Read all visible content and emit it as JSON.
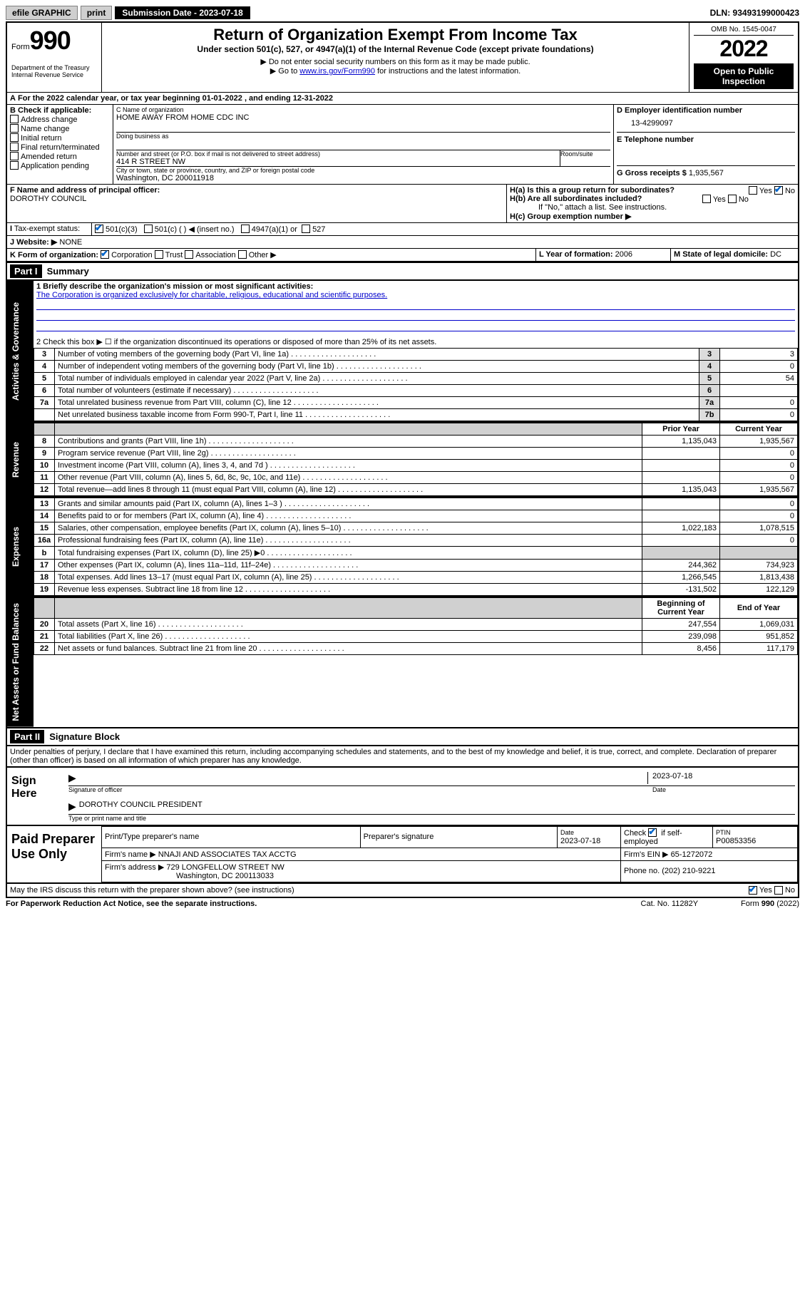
{
  "topbar": {
    "efile": "efile GRAPHIC",
    "print": "print",
    "subdate_label": "Submission Date - 2023-07-18",
    "dln": "DLN: 93493199000423"
  },
  "header": {
    "form_prefix": "Form",
    "form_no": "990",
    "title": "Return of Organization Exempt From Income Tax",
    "subtitle": "Under section 501(c), 527, or 4947(a)(1) of the Internal Revenue Code (except private foundations)",
    "note1": "▶ Do not enter social security numbers on this form as it may be made public.",
    "note2_a": "▶ Go to ",
    "note2_link": "www.irs.gov/Form990",
    "note2_b": " for instructions and the latest information.",
    "dept": "Department of the Treasury\nInternal Revenue Service",
    "omb": "OMB No. 1545-0047",
    "year": "2022",
    "inspect": "Open to Public Inspection"
  },
  "lineA": "For the 2022 calendar year, or tax year beginning 01-01-2022  , and ending 12-31-2022",
  "boxB": {
    "label": "B Check if applicable:",
    "items": [
      "Address change",
      "Name change",
      "Initial return",
      "Final return/terminated",
      "Amended return",
      "Application pending"
    ]
  },
  "boxC": {
    "label_name": "C Name of organization",
    "name": "HOME AWAY FROM HOME CDC INC",
    "dba_label": "Doing business as",
    "addr_label": "Number and street (or P.O. box if mail is not delivered to street address)",
    "room_label": "Room/suite",
    "addr": "414 R STREET NW",
    "city_label": "City or town, state or province, country, and ZIP or foreign postal code",
    "city": "Washington, DC  200011918"
  },
  "boxD": {
    "label": "D Employer identification number",
    "value": "13-4299097"
  },
  "boxE": {
    "label": "E Telephone number"
  },
  "boxG": {
    "label": "G Gross receipts $",
    "value": "1,935,567"
  },
  "boxF": {
    "label": "F Name and address of principal officer:",
    "value": "DOROTHY COUNCIL"
  },
  "boxH": {
    "a": "H(a)  Is this a group return for subordinates?",
    "b": "H(b)  Are all subordinates included?",
    "b_note": "If \"No,\" attach a list. See instructions.",
    "c": "H(c)  Group exemption number ▶",
    "yes": "Yes",
    "no": "No"
  },
  "taxexempt": {
    "label": "Tax-exempt status:",
    "c3": "501(c)(3)",
    "cother": "501(c) (  ) ◀ (insert no.)",
    "c4947": "4947(a)(1) or",
    "c527": "527"
  },
  "website": {
    "label": "J  Website: ▶",
    "value": "NONE"
  },
  "boxK": {
    "label": "K Form of organization:",
    "corp": "Corporation",
    "trust": "Trust",
    "assoc": "Association",
    "other": "Other ▶"
  },
  "boxL": {
    "label": "L Year of formation:",
    "value": "2006"
  },
  "boxM": {
    "label": "M State of legal domicile:",
    "value": "DC"
  },
  "parts": {
    "p1": "Part I",
    "p1t": "Summary",
    "p2": "Part II",
    "p2t": "Signature Block"
  },
  "summary": {
    "line1_label": "1  Briefly describe the organization's mission or most significant activities:",
    "line1_text": "The Corporation is organized exclusively for charitable, religious, educational and scientific purposes.",
    "line2": "2  Check this box ▶ ☐  if the organization discontinued its operations or disposed of more than 25% of its net assets.",
    "rows_gov": [
      {
        "n": "3",
        "d": "Number of voting members of the governing body (Part VI, line 1a)",
        "b": "3",
        "v": "3"
      },
      {
        "n": "4",
        "d": "Number of independent voting members of the governing body (Part VI, line 1b)",
        "b": "4",
        "v": "0"
      },
      {
        "n": "5",
        "d": "Total number of individuals employed in calendar year 2022 (Part V, line 2a)",
        "b": "5",
        "v": "54"
      },
      {
        "n": "6",
        "d": "Total number of volunteers (estimate if necessary)",
        "b": "6",
        "v": ""
      },
      {
        "n": "7a",
        "d": "Total unrelated business revenue from Part VIII, column (C), line 12",
        "b": "7a",
        "v": "0"
      },
      {
        "n": "",
        "d": "Net unrelated business taxable income from Form 990-T, Part I, line 11",
        "b": "7b",
        "v": "0"
      }
    ],
    "col_prior": "Prior Year",
    "col_curr": "Current Year",
    "rows_rev": [
      {
        "n": "8",
        "d": "Contributions and grants (Part VIII, line 1h)",
        "p": "1,135,043",
        "c": "1,935,567"
      },
      {
        "n": "9",
        "d": "Program service revenue (Part VIII, line 2g)",
        "p": "",
        "c": "0"
      },
      {
        "n": "10",
        "d": "Investment income (Part VIII, column (A), lines 3, 4, and 7d )",
        "p": "",
        "c": "0"
      },
      {
        "n": "11",
        "d": "Other revenue (Part VIII, column (A), lines 5, 6d, 8c, 9c, 10c, and 11e)",
        "p": "",
        "c": "0"
      },
      {
        "n": "12",
        "d": "Total revenue—add lines 8 through 11 (must equal Part VIII, column (A), line 12)",
        "p": "1,135,043",
        "c": "1,935,567"
      }
    ],
    "rows_exp": [
      {
        "n": "13",
        "d": "Grants and similar amounts paid (Part IX, column (A), lines 1–3 )",
        "p": "",
        "c": "0"
      },
      {
        "n": "14",
        "d": "Benefits paid to or for members (Part IX, column (A), line 4)",
        "p": "",
        "c": "0"
      },
      {
        "n": "15",
        "d": "Salaries, other compensation, employee benefits (Part IX, column (A), lines 5–10)",
        "p": "1,022,183",
        "c": "1,078,515"
      },
      {
        "n": "16a",
        "d": "Professional fundraising fees (Part IX, column (A), line 11e)",
        "p": "",
        "c": "0"
      },
      {
        "n": "b",
        "d": "Total fundraising expenses (Part IX, column (D), line 25) ▶0",
        "p": "SHADE",
        "c": "SHADE"
      },
      {
        "n": "17",
        "d": "Other expenses (Part IX, column (A), lines 11a–11d, 11f–24e)",
        "p": "244,362",
        "c": "734,923"
      },
      {
        "n": "18",
        "d": "Total expenses. Add lines 13–17 (must equal Part IX, column (A), line 25)",
        "p": "1,266,545",
        "c": "1,813,438"
      },
      {
        "n": "19",
        "d": "Revenue less expenses. Subtract line 18 from line 12",
        "p": "-131,502",
        "c": "122,129"
      }
    ],
    "col_beg": "Beginning of Current Year",
    "col_end": "End of Year",
    "rows_net": [
      {
        "n": "20",
        "d": "Total assets (Part X, line 16)",
        "p": "247,554",
        "c": "1,069,031"
      },
      {
        "n": "21",
        "d": "Total liabilities (Part X, line 26)",
        "p": "239,098",
        "c": "951,852"
      },
      {
        "n": "22",
        "d": "Net assets or fund balances. Subtract line 21 from line 20",
        "p": "8,456",
        "c": "117,179"
      }
    ],
    "vtabs": {
      "gov": "Activities & Governance",
      "rev": "Revenue",
      "exp": "Expenses",
      "net": "Net Assets or Fund Balances"
    }
  },
  "sig": {
    "decl": "Under penalties of perjury, I declare that I have examined this return, including accompanying schedules and statements, and to the best of my knowledge and belief, it is true, correct, and complete. Declaration of preparer (other than officer) is based on all information of which preparer has any knowledge.",
    "sign_here": "Sign Here",
    "sig_officer": "Signature of officer",
    "date": "Date",
    "date_val": "2023-07-18",
    "name_title": "DOROTHY COUNCIL  PRESIDENT",
    "name_label": "Type or print name and title",
    "paid": "Paid Preparer Use Only",
    "pth": "Print/Type preparer's name",
    "psig": "Preparer's signature",
    "pdate": "Date",
    "pdate_v": "2023-07-18",
    "check_self": "Check ☑ if self-employed",
    "ptin_l": "PTIN",
    "ptin": "P00853356",
    "firm_name_l": "Firm's name   ▶",
    "firm_name": "NNAJI AND ASSOCIATES TAX ACCTG",
    "firm_ein_l": "Firm's EIN ▶",
    "firm_ein": "65-1272072",
    "firm_addr_l": "Firm's address ▶",
    "firm_addr": "729 LONGFELLOW STREET NW",
    "firm_city": "Washington, DC  200113033",
    "phone_l": "Phone no.",
    "phone": "(202) 210-9221",
    "irs_discuss": "May the IRS discuss this return with the preparer shown above? (see instructions)"
  },
  "footer": {
    "pra": "For Paperwork Reduction Act Notice, see the separate instructions.",
    "cat": "Cat. No. 11282Y",
    "form": "Form 990 (2022)"
  }
}
